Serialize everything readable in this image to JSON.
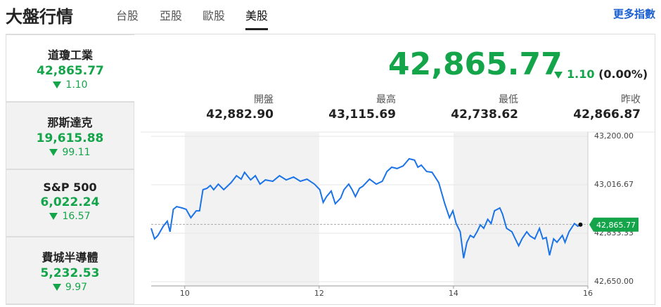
{
  "header": {
    "title": "大盤行情",
    "tabs": [
      "台股",
      "亞股",
      "歐股",
      "美股"
    ],
    "more_link": "更多指數"
  },
  "indices": [
    {
      "name": "道瓊工業",
      "value": "42,865.77",
      "change": "1.10"
    },
    {
      "name": "那斯達克",
      "value": "19,615.88",
      "change": "99.11"
    },
    {
      "name": "S&P 500",
      "value": "6,022.24",
      "change": "16.57"
    },
    {
      "name": "費城半導體",
      "value": "5,232.53",
      "change": "9.97"
    }
  ],
  "quote": {
    "price": "42,865.77",
    "change": "1.10",
    "percent": "(0.00%)",
    "stats": [
      {
        "label": "開盤",
        "value": "42,882.90"
      },
      {
        "label": "最高",
        "value": "43,115.69"
      },
      {
        "label": "最低",
        "value": "42,738.62"
      },
      {
        "label": "昨收",
        "value": "42,866.87"
      }
    ]
  },
  "chart_data": {
    "type": "line",
    "color": "#1a73e8",
    "x": [
      9.5,
      9.55,
      9.6,
      9.68,
      9.74,
      9.78,
      9.83,
      9.88,
      9.96,
      10.02,
      10.09,
      10.17,
      10.22,
      10.27,
      10.33,
      10.38,
      10.43,
      10.5,
      10.58,
      10.69,
      10.77,
      10.84,
      10.89,
      10.98,
      11.05,
      11.12,
      11.2,
      11.31,
      11.41,
      11.51,
      11.62,
      11.72,
      11.82,
      11.93,
      12.01,
      12.06,
      12.11,
      12.18,
      12.24,
      12.32,
      12.37,
      12.44,
      12.49,
      12.54,
      12.6,
      12.65,
      12.75,
      12.85,
      12.94,
      13.01,
      13.08,
      13.16,
      13.25,
      13.34,
      13.42,
      13.47,
      13.52,
      13.6,
      13.68,
      13.78,
      13.87,
      13.94,
      13.99,
      14.04,
      14.1,
      14.15,
      14.2,
      14.25,
      14.3,
      14.35,
      14.4,
      14.45,
      14.51,
      14.56,
      14.61,
      14.69,
      14.73,
      14.79,
      14.87,
      14.92,
      14.97,
      15.02,
      15.09,
      15.14,
      15.21,
      15.28,
      15.33,
      15.38,
      15.43,
      15.49,
      15.54,
      15.62,
      15.66,
      15.72,
      15.8,
      15.85,
      15.89
    ],
    "values": [
      42852,
      42812,
      42825,
      42860,
      42879,
      42839,
      42924,
      42934,
      42929,
      42924,
      42892,
      42918,
      42918,
      42998,
      43003,
      43014,
      42998,
      43019,
      42998,
      43025,
      43051,
      43038,
      43064,
      43035,
      43051,
      43019,
      43035,
      43030,
      43051,
      43035,
      43046,
      43030,
      43038,
      43019,
      42998,
      42950,
      42972,
      42993,
      42945,
      42966,
      42998,
      43019,
      42998,
      42972,
      43003,
      43011,
      43038,
      43019,
      43030,
      43067,
      43083,
      43078,
      43088,
      43115,
      43110,
      43083,
      43091,
      43067,
      43064,
      43025,
      42945,
      42892,
      42918,
      42870,
      42839,
      42739,
      42799,
      42825,
      42817,
      42839,
      42865,
      42852,
      42886,
      42870,
      42918,
      42929,
      42905,
      42852,
      42839,
      42812,
      42786,
      42812,
      42839,
      42823,
      42812,
      42852,
      42812,
      42817,
      42750,
      42812,
      42799,
      42825,
      42799,
      42839,
      42870,
      42860,
      42865.77
    ],
    "last_label": "42,865.77",
    "ref_line": 42866.87,
    "xlim": [
      9.5,
      16
    ],
    "xticks": [
      10,
      12,
      14,
      16
    ],
    "ylim": [
      42650,
      43200
    ],
    "yticks": [
      {
        "value": 42650,
        "label": "42,650.00"
      },
      {
        "value": 42833.33,
        "label": "42,833.33"
      },
      {
        "value": 43016.67,
        "label": "43,016.67"
      },
      {
        "value": 43200,
        "label": "43,200.00"
      }
    ]
  }
}
